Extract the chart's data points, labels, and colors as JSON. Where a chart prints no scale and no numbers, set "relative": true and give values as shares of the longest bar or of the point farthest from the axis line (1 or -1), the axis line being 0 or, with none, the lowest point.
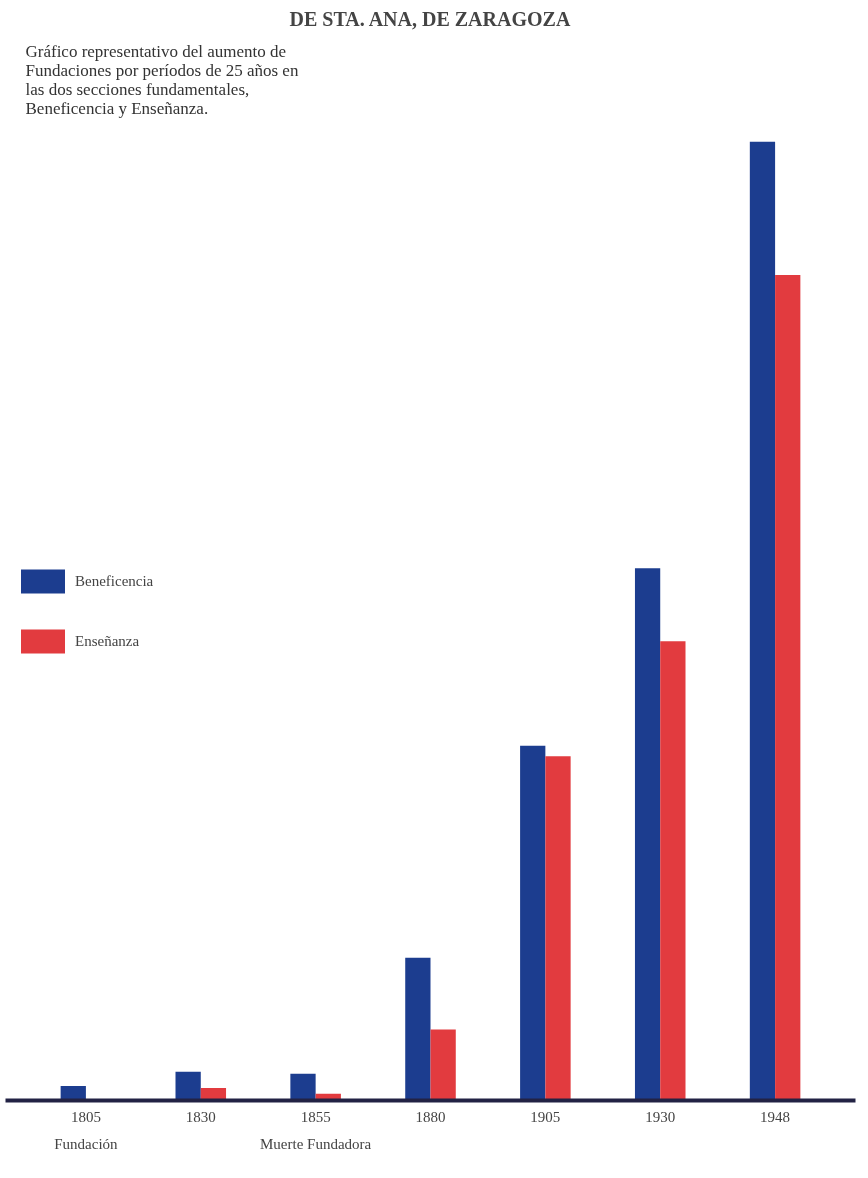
{
  "chart_data": {
    "type": "bar",
    "title": "DE STA. ANA, DE ZARAGOZA",
    "subtitle": "Gráfico representativo del aumento de Fundaciones por períodos de 25 años en las dos secciones fundamentales, Beneficencia y Enseñanza.",
    "relative": true,
    "categories": [
      "1805",
      "1830",
      "1855",
      "1880",
      "1905",
      "1930",
      "1948"
    ],
    "series": [
      {
        "name": "Beneficencia",
        "color": "#1c3d8f",
        "values": [
          0.015,
          0.03,
          0.028,
          0.149,
          0.37,
          0.555,
          1.0
        ]
      },
      {
        "name": "Enseñanza",
        "color": "#e23b3f",
        "values": [
          null,
          0.013,
          0.007,
          0.074,
          0.359,
          0.479,
          0.861
        ]
      }
    ],
    "annotations": [
      "Fundación",
      "Muerte Fundadora"
    ],
    "legend": "left",
    "grid": false
  }
}
